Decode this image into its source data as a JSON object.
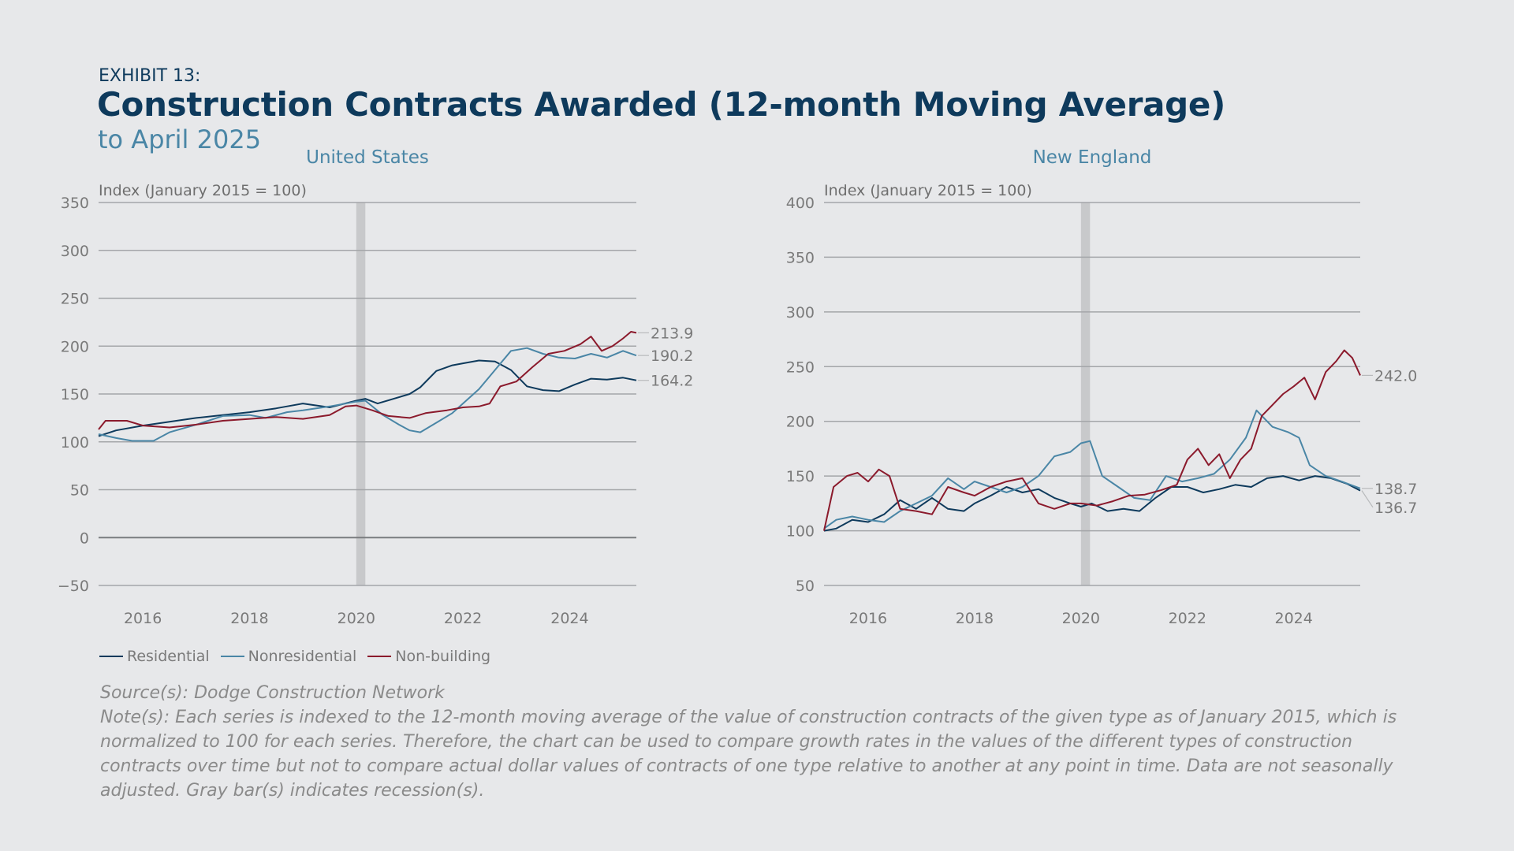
{
  "header": {
    "exhibit": "EXHIBIT 13:",
    "title": "Construction Contracts Awarded (12-month Moving Average)",
    "subtitle": "to April 2025"
  },
  "legend": [
    {
      "label": "Residential",
      "color": "#0e3a5c"
    },
    {
      "label": "Nonresidential",
      "color": "#4a86a6"
    },
    {
      "label": "Non-building",
      "color": "#8b1a2c"
    }
  ],
  "footer": {
    "source": "Source(s): Dodge Construction Network",
    "note": "Note(s): Each series is indexed to the 12-month moving average of the value of construction contracts of the given type as of January 2015, which is normalized to 100 for each series. Therefore, the chart can be used to compare growth rates in the values of the different types of construction contracts over time but not to compare actual dollar values of contracts of one type relative to another at any point in time. Data are not seasonally adjusted. Gray bar(s) indicates recession(s)."
  },
  "chart_data": [
    {
      "type": "line",
      "title": "United States",
      "ylabel": "Index (January 2015 = 100)",
      "ylim": [
        -50,
        350
      ],
      "yticks": [
        -50,
        0,
        50,
        100,
        150,
        200,
        250,
        300,
        350
      ],
      "xlim": [
        2015.17,
        2025.25
      ],
      "xticks": [
        2016,
        2018,
        2020,
        2022,
        2024
      ],
      "recession": [
        2020.0,
        2020.17
      ],
      "grid": true,
      "series": [
        {
          "name": "Residential",
          "color": "#0e3a5c",
          "end_label": "164.2",
          "points": [
            [
              2015.17,
              106
            ],
            [
              2015.5,
              112
            ],
            [
              2016.0,
              117
            ],
            [
              2016.5,
              121
            ],
            [
              2017.0,
              125
            ],
            [
              2017.5,
              128
            ],
            [
              2018.0,
              131
            ],
            [
              2018.5,
              135
            ],
            [
              2019.0,
              140
            ],
            [
              2019.5,
              136
            ],
            [
              2020.0,
              143
            ],
            [
              2020.17,
              145
            ],
            [
              2020.4,
              140
            ],
            [
              2020.7,
              145
            ],
            [
              2021.0,
              150
            ],
            [
              2021.2,
              157
            ],
            [
              2021.5,
              174
            ],
            [
              2021.8,
              180
            ],
            [
              2022.0,
              182
            ],
            [
              2022.3,
              185
            ],
            [
              2022.6,
              184
            ],
            [
              2022.9,
              175
            ],
            [
              2023.2,
              158
            ],
            [
              2023.5,
              154
            ],
            [
              2023.8,
              153
            ],
            [
              2024.1,
              160
            ],
            [
              2024.4,
              166
            ],
            [
              2024.7,
              165
            ],
            [
              2025.0,
              167
            ],
            [
              2025.25,
              164.2
            ]
          ]
        },
        {
          "name": "Nonresidential",
          "color": "#4a86a6",
          "end_label": "190.2",
          "points": [
            [
              2015.17,
              108
            ],
            [
              2015.5,
              104
            ],
            [
              2015.8,
              101
            ],
            [
              2016.2,
              101
            ],
            [
              2016.5,
              110
            ],
            [
              2017.0,
              118
            ],
            [
              2017.5,
              127
            ],
            [
              2018.0,
              128
            ],
            [
              2018.3,
              125
            ],
            [
              2018.7,
              131
            ],
            [
              2019.0,
              133
            ],
            [
              2019.5,
              137
            ],
            [
              2020.0,
              142
            ],
            [
              2020.17,
              143
            ],
            [
              2020.5,
              128
            ],
            [
              2020.8,
              118
            ],
            [
              2021.0,
              112
            ],
            [
              2021.2,
              110
            ],
            [
              2021.5,
              120
            ],
            [
              2021.8,
              130
            ],
            [
              2022.0,
              140
            ],
            [
              2022.3,
              155
            ],
            [
              2022.6,
              175
            ],
            [
              2022.9,
              195
            ],
            [
              2023.2,
              198
            ],
            [
              2023.5,
              192
            ],
            [
              2023.8,
              188
            ],
            [
              2024.1,
              187
            ],
            [
              2024.4,
              192
            ],
            [
              2024.7,
              188
            ],
            [
              2025.0,
              195
            ],
            [
              2025.25,
              190.2
            ]
          ]
        },
        {
          "name": "Non-building",
          "color": "#8b1a2c",
          "end_label": "213.9",
          "points": [
            [
              2015.17,
              113
            ],
            [
              2015.3,
              122
            ],
            [
              2015.7,
              122
            ],
            [
              2016.0,
              117
            ],
            [
              2016.5,
              115
            ],
            [
              2017.0,
              118
            ],
            [
              2017.5,
              122
            ],
            [
              2018.0,
              124
            ],
            [
              2018.5,
              126
            ],
            [
              2019.0,
              124
            ],
            [
              2019.5,
              128
            ],
            [
              2019.8,
              137
            ],
            [
              2020.0,
              138
            ],
            [
              2020.3,
              133
            ],
            [
              2020.6,
              127
            ],
            [
              2021.0,
              125
            ],
            [
              2021.3,
              130
            ],
            [
              2021.7,
              133
            ],
            [
              2022.0,
              136
            ],
            [
              2022.3,
              137
            ],
            [
              2022.5,
              140
            ],
            [
              2022.7,
              158
            ],
            [
              2023.0,
              163
            ],
            [
              2023.3,
              178
            ],
            [
              2023.6,
              192
            ],
            [
              2023.9,
              195
            ],
            [
              2024.2,
              202
            ],
            [
              2024.4,
              210
            ],
            [
              2024.6,
              195
            ],
            [
              2024.8,
              200
            ],
            [
              2025.0,
              208
            ],
            [
              2025.15,
              215
            ],
            [
              2025.25,
              213.9
            ]
          ]
        }
      ]
    },
    {
      "type": "line",
      "title": "New England",
      "ylabel": "Index (January 2015 = 100)",
      "ylim": [
        50,
        400
      ],
      "yticks": [
        50,
        100,
        150,
        200,
        250,
        300,
        350,
        400
      ],
      "xlim": [
        2015.17,
        2025.25
      ],
      "xticks": [
        2016,
        2018,
        2020,
        2022,
        2024
      ],
      "recession": [
        2020.0,
        2020.17
      ],
      "grid": true,
      "series": [
        {
          "name": "Residential",
          "color": "#0e3a5c",
          "end_label": "136.7",
          "points": [
            [
              2015.17,
              100
            ],
            [
              2015.4,
              102
            ],
            [
              2015.7,
              110
            ],
            [
              2016.0,
              108
            ],
            [
              2016.3,
              115
            ],
            [
              2016.6,
              128
            ],
            [
              2016.9,
              120
            ],
            [
              2017.2,
              130
            ],
            [
              2017.5,
              120
            ],
            [
              2017.8,
              118
            ],
            [
              2018.0,
              125
            ],
            [
              2018.3,
              132
            ],
            [
              2018.6,
              140
            ],
            [
              2018.9,
              135
            ],
            [
              2019.2,
              138
            ],
            [
              2019.5,
              130
            ],
            [
              2019.8,
              125
            ],
            [
              2020.0,
              122
            ],
            [
              2020.2,
              125
            ],
            [
              2020.5,
              118
            ],
            [
              2020.8,
              120
            ],
            [
              2021.1,
              118
            ],
            [
              2021.4,
              130
            ],
            [
              2021.7,
              140
            ],
            [
              2022.0,
              140
            ],
            [
              2022.3,
              135
            ],
            [
              2022.6,
              138
            ],
            [
              2022.9,
              142
            ],
            [
              2023.2,
              140
            ],
            [
              2023.5,
              148
            ],
            [
              2023.8,
              150
            ],
            [
              2024.1,
              146
            ],
            [
              2024.4,
              150
            ],
            [
              2024.7,
              148
            ],
            [
              2025.0,
              143
            ],
            [
              2025.25,
              136.7
            ]
          ]
        },
        {
          "name": "Nonresidential",
          "color": "#4a86a6",
          "end_label": "138.7",
          "points": [
            [
              2015.17,
              102
            ],
            [
              2015.4,
              110
            ],
            [
              2015.7,
              113
            ],
            [
              2016.0,
              110
            ],
            [
              2016.3,
              108
            ],
            [
              2016.6,
              118
            ],
            [
              2016.9,
              125
            ],
            [
              2017.2,
              132
            ],
            [
              2017.5,
              148
            ],
            [
              2017.8,
              138
            ],
            [
              2018.0,
              145
            ],
            [
              2018.3,
              140
            ],
            [
              2018.6,
              135
            ],
            [
              2018.9,
              140
            ],
            [
              2019.2,
              150
            ],
            [
              2019.5,
              168
            ],
            [
              2019.8,
              172
            ],
            [
              2020.0,
              180
            ],
            [
              2020.17,
              182
            ],
            [
              2020.4,
              150
            ],
            [
              2020.7,
              140
            ],
            [
              2021.0,
              130
            ],
            [
              2021.3,
              128
            ],
            [
              2021.6,
              150
            ],
            [
              2021.9,
              145
            ],
            [
              2022.2,
              148
            ],
            [
              2022.5,
              152
            ],
            [
              2022.8,
              165
            ],
            [
              2023.1,
              185
            ],
            [
              2023.3,
              210
            ],
            [
              2023.6,
              195
            ],
            [
              2023.9,
              190
            ],
            [
              2024.1,
              185
            ],
            [
              2024.3,
              160
            ],
            [
              2024.6,
              150
            ],
            [
              2024.9,
              145
            ],
            [
              2025.25,
              138.7
            ]
          ]
        },
        {
          "name": "Non-building",
          "color": "#8b1a2c",
          "end_label": "242.0",
          "points": [
            [
              2015.17,
              100
            ],
            [
              2015.35,
              140
            ],
            [
              2015.6,
              150
            ],
            [
              2015.8,
              153
            ],
            [
              2016.0,
              145
            ],
            [
              2016.2,
              156
            ],
            [
              2016.4,
              150
            ],
            [
              2016.6,
              120
            ],
            [
              2016.9,
              118
            ],
            [
              2017.2,
              115
            ],
            [
              2017.5,
              140
            ],
            [
              2017.8,
              135
            ],
            [
              2018.0,
              132
            ],
            [
              2018.3,
              140
            ],
            [
              2018.6,
              145
            ],
            [
              2018.9,
              148
            ],
            [
              2019.2,
              125
            ],
            [
              2019.5,
              120
            ],
            [
              2019.8,
              125
            ],
            [
              2020.0,
              125
            ],
            [
              2020.3,
              123
            ],
            [
              2020.6,
              127
            ],
            [
              2020.9,
              132
            ],
            [
              2021.2,
              133
            ],
            [
              2021.5,
              137
            ],
            [
              2021.8,
              142
            ],
            [
              2022.0,
              165
            ],
            [
              2022.2,
              175
            ],
            [
              2022.4,
              160
            ],
            [
              2022.6,
              170
            ],
            [
              2022.8,
              148
            ],
            [
              2023.0,
              165
            ],
            [
              2023.2,
              175
            ],
            [
              2023.4,
              205
            ],
            [
              2023.6,
              215
            ],
            [
              2023.8,
              225
            ],
            [
              2024.0,
              232
            ],
            [
              2024.2,
              240
            ],
            [
              2024.4,
              220
            ],
            [
              2024.6,
              245
            ],
            [
              2024.8,
              255
            ],
            [
              2024.95,
              265
            ],
            [
              2025.1,
              258
            ],
            [
              2025.25,
              242.0
            ]
          ]
        }
      ]
    }
  ]
}
